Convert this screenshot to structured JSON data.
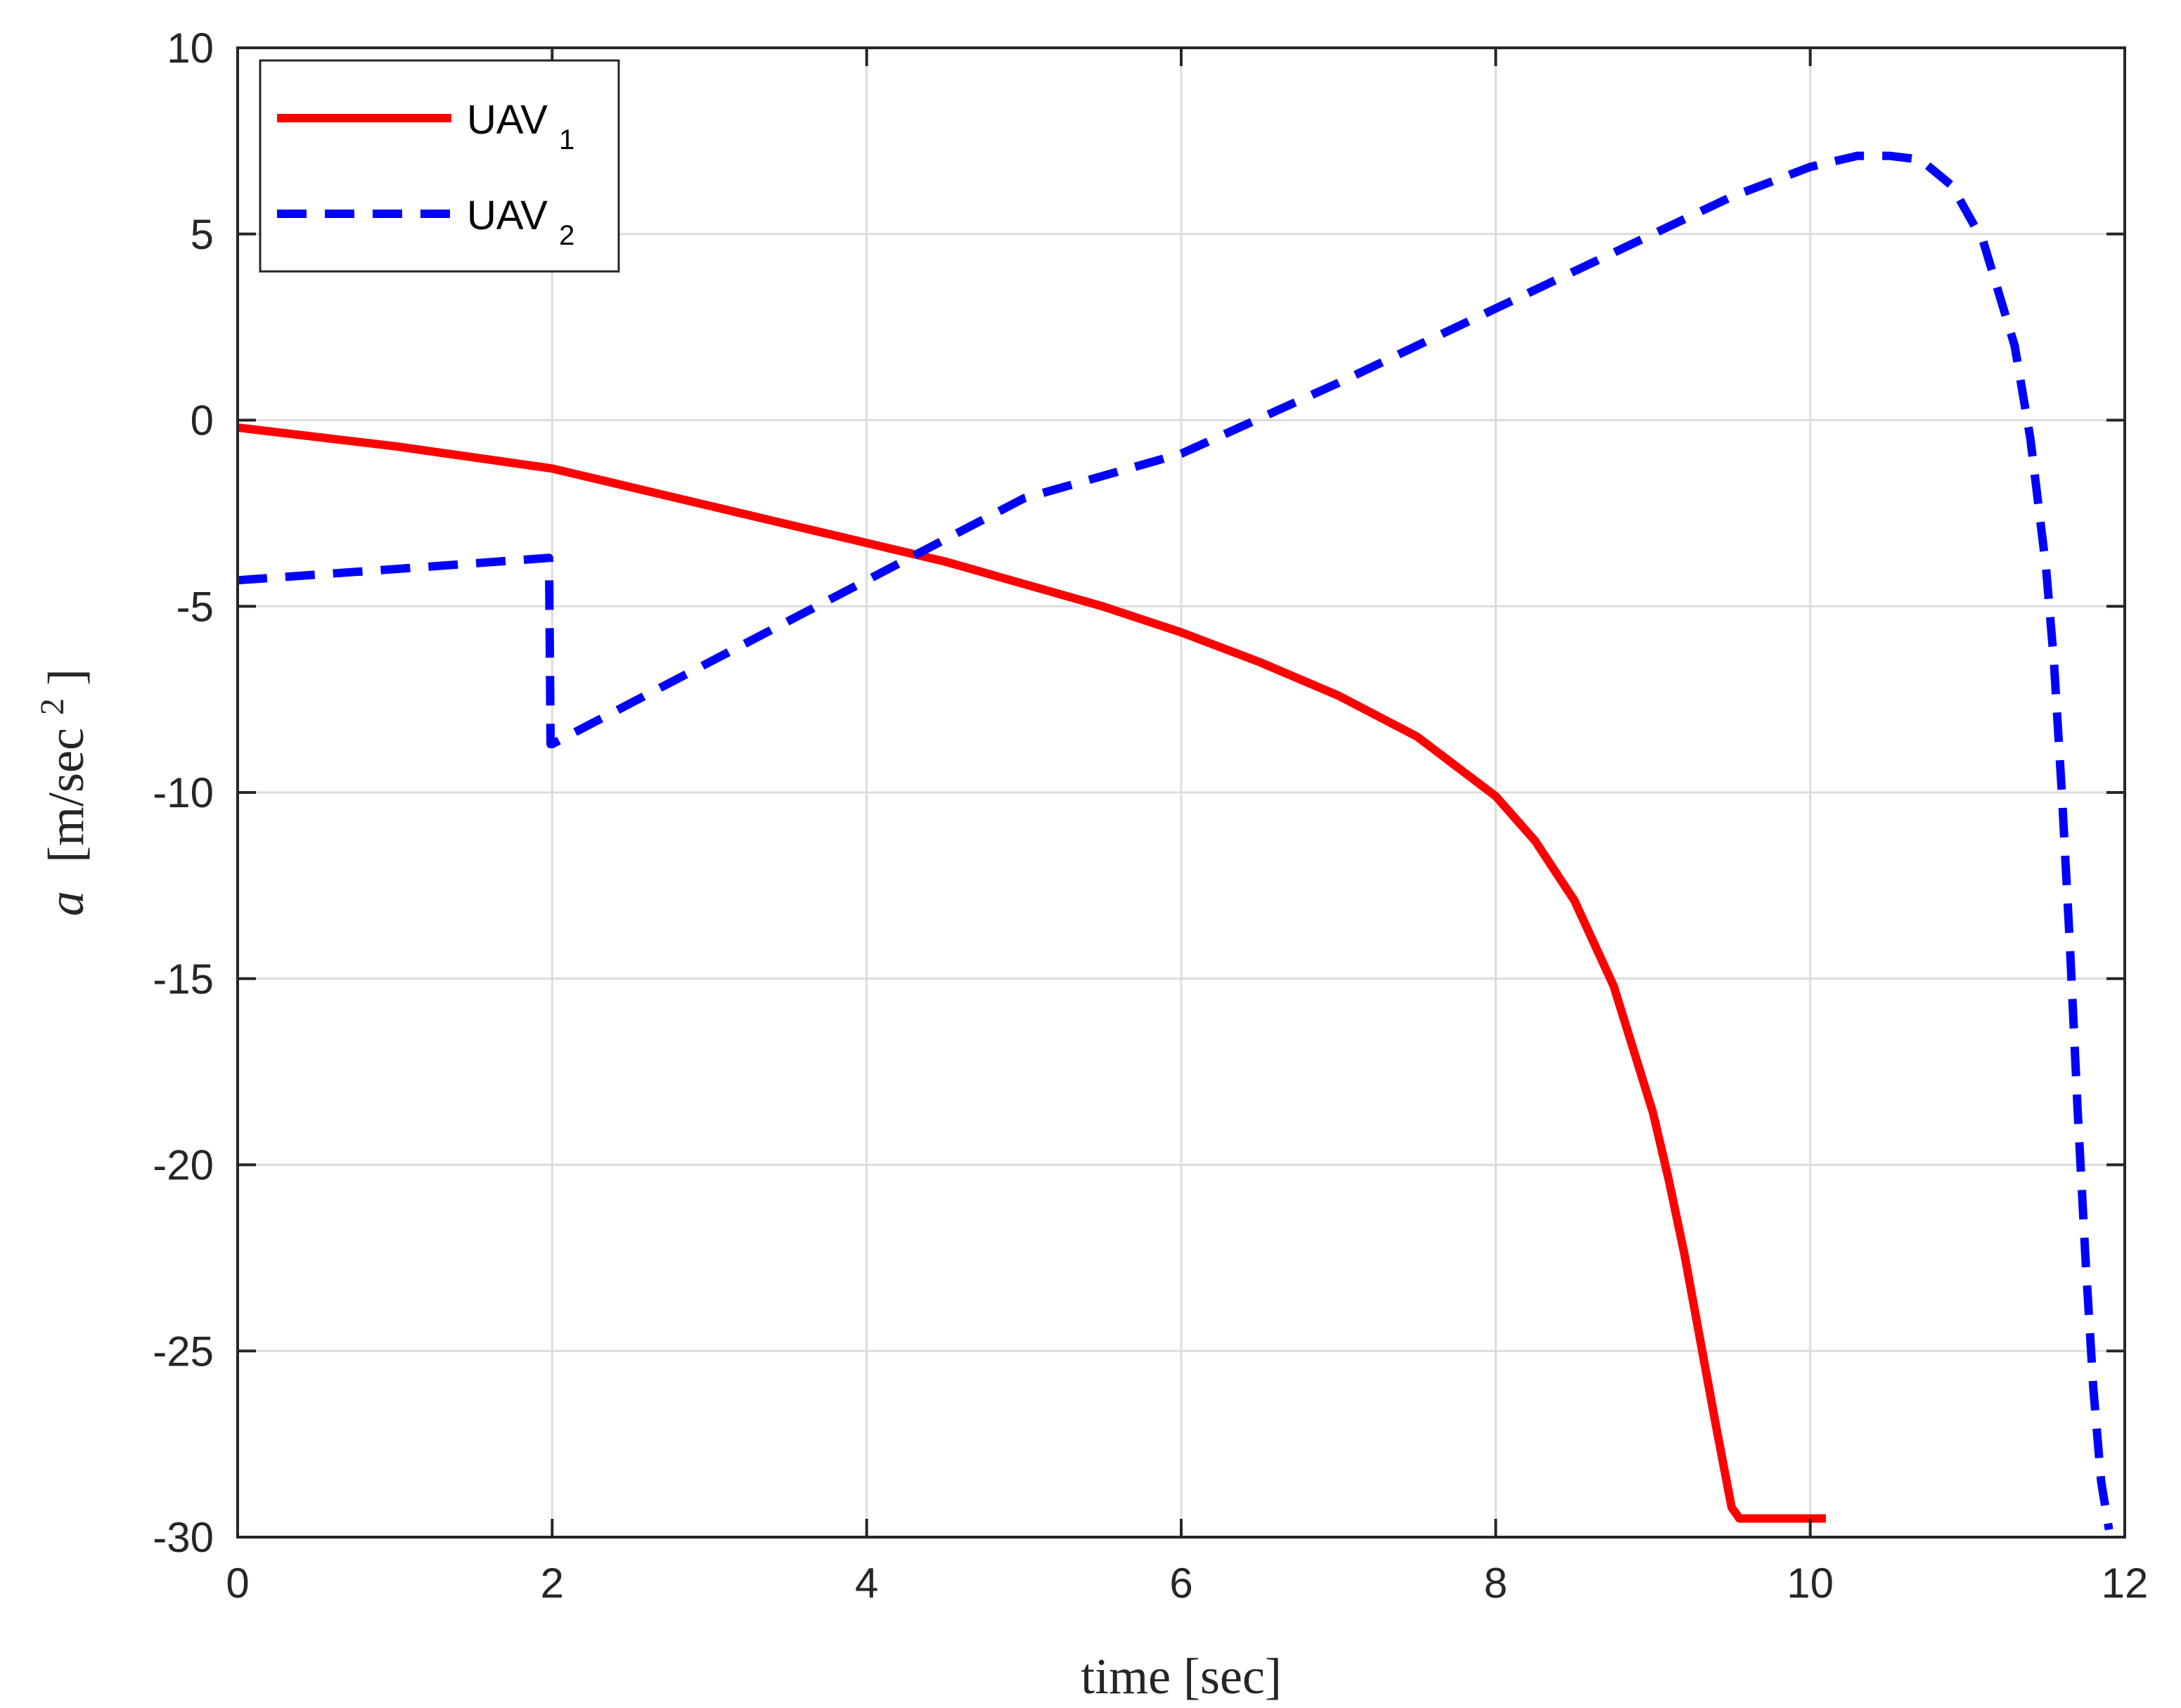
{
  "chart_data": {
    "type": "line",
    "title": "",
    "xlabel": "time [sec]",
    "ylabel_main": "a",
    "ylabel_units": "[m/sec",
    "ylabel_units_sup": "2",
    "ylabel_units_close": "]",
    "xlim": [
      0,
      12
    ],
    "ylim": [
      -30,
      10
    ],
    "grid": true,
    "legend_position": "top-left",
    "x_ticks": [
      0,
      2,
      4,
      6,
      8,
      10,
      12
    ],
    "x_tick_labels": [
      "0",
      "2",
      "4",
      "6",
      "8",
      "10",
      "12"
    ],
    "y_ticks": [
      10,
      5,
      0,
      -5,
      -10,
      -15,
      -20,
      -25,
      -30
    ],
    "y_tick_labels": [
      "10",
      "5",
      "0",
      "-5",
      "-10",
      "-15",
      "-20",
      "-25",
      "-30"
    ],
    "series": [
      {
        "name": "UAV",
        "subscript": "1",
        "color": "#ff0000",
        "style": "solid",
        "x": [
          0,
          1,
          2,
          2.5,
          3,
          3.5,
          4,
          4.5,
          5,
          5.5,
          6,
          6.5,
          7,
          7.5,
          8,
          8.25,
          8.5,
          8.75,
          9.0,
          9.1,
          9.2,
          9.3,
          9.4,
          9.5,
          9.55,
          9.7,
          10.1
        ],
        "y": [
          -0.2,
          -0.7,
          -1.3,
          -1.8,
          -2.3,
          -2.8,
          -3.3,
          -3.8,
          -4.4,
          -5.0,
          -5.7,
          -6.5,
          -7.4,
          -8.5,
          -10.1,
          -11.3,
          -12.9,
          -15.2,
          -18.6,
          -20.4,
          -22.4,
          -24.7,
          -27.0,
          -29.2,
          -29.5,
          -29.5,
          -29.5
        ]
      },
      {
        "name": "UAV",
        "subscript": "2",
        "color": "#0000ff",
        "style": "dashed",
        "x": [
          0,
          1,
          1.98,
          1.99,
          2.0,
          3,
          4,
          5,
          6,
          7,
          8,
          9,
          9.5,
          10,
          10.3,
          10.5,
          10.7,
          10.9,
          11.1,
          11.3,
          11.4,
          11.5,
          11.55,
          11.6,
          11.65,
          11.7,
          11.75,
          11.8,
          11.85,
          11.9
        ],
        "y": [
          -4.3,
          -4.0,
          -3.7,
          -8.7,
          -8.7,
          -6.5,
          -4.3,
          -2.1,
          -0.9,
          1.0,
          3.0,
          5.0,
          6.0,
          6.8,
          7.1,
          7.1,
          7.0,
          6.3,
          4.8,
          2.0,
          -0.5,
          -4.0,
          -6.5,
          -10.0,
          -14.0,
          -18.5,
          -22.5,
          -26.0,
          -28.5,
          -29.8
        ]
      }
    ]
  }
}
